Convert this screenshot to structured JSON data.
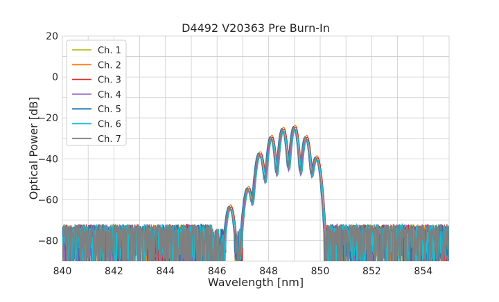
{
  "chart_data": {
    "type": "line",
    "title": "D4492 V20363 Pre Burn-In",
    "xlabel": "Wavelength [nm]",
    "ylabel": "Optical Power [dB]",
    "xlim": [
      840,
      855
    ],
    "ylim": [
      -90,
      20
    ],
    "x_ticks": [
      840,
      842,
      844,
      846,
      848,
      850,
      852,
      854
    ],
    "y_ticks": [
      -80,
      -60,
      -40,
      -20,
      0,
      20
    ],
    "grid": true,
    "legend_position": "top-left",
    "noise_floor_db": -80,
    "peaks": [
      {
        "x": 846.5,
        "y": -64,
        "w": 0.08
      },
      {
        "x": 847.2,
        "y": -55,
        "w": 0.08
      },
      {
        "x": 847.65,
        "y": -38,
        "w": 0.08
      },
      {
        "x": 848.1,
        "y": -30,
        "w": 0.07
      },
      {
        "x": 848.55,
        "y": -26,
        "w": 0.07
      },
      {
        "x": 849.0,
        "y": -25,
        "w": 0.07
      },
      {
        "x": 849.45,
        "y": -30,
        "w": 0.07
      },
      {
        "x": 849.85,
        "y": -40,
        "w": 0.08
      }
    ],
    "series": [
      {
        "name": "Ch. 1",
        "color": "#bcbd22",
        "offset": -0.01,
        "gain": 0.0
      },
      {
        "name": "Ch. 2",
        "color": "#ff7f0e",
        "offset": 0.03,
        "gain": 1.5
      },
      {
        "name": "Ch. 3",
        "color": "#d62728",
        "offset": 0.05,
        "gain": 0.5
      },
      {
        "name": "Ch. 4",
        "color": "#9467bd",
        "offset": 0.0,
        "gain": -1.0
      },
      {
        "name": "Ch. 5",
        "color": "#1f77b4",
        "offset": -0.04,
        "gain": 0.8
      },
      {
        "name": "Ch. 6",
        "color": "#17becf",
        "offset": 0.04,
        "gain": -0.5
      },
      {
        "name": "Ch. 7",
        "color": "#7f7f7f",
        "offset": -0.02,
        "gain": 0.3
      }
    ]
  }
}
